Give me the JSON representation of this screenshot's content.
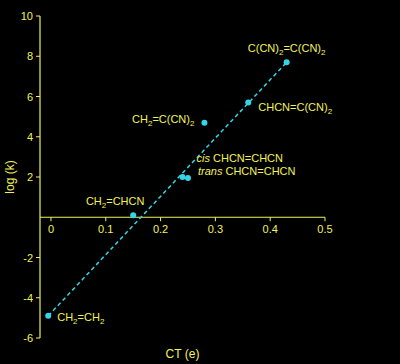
{
  "chart_data": {
    "type": "scatter",
    "x_label": "CT (e)",
    "y_label": "log (k)",
    "xlim": [
      -0.02,
      0.5
    ],
    "ylim": [
      -6,
      10
    ],
    "xticks": [
      0,
      0.1,
      0.2,
      0.3,
      0.4,
      0.5
    ],
    "yticks": [
      -6,
      -4,
      -2,
      2,
      4,
      6,
      8,
      10
    ],
    "series": [
      {
        "type": "scatter",
        "color": "#33d6e6",
        "marker": "circle",
        "x": [
          -0.005,
          0.15,
          0.24,
          0.25,
          0.28,
          0.36,
          0.43
        ],
        "values": [
          -4.9,
          0.1,
          2.0,
          1.95,
          4.7,
          5.7,
          7.7
        ],
        "labels": [
          "CH2=CH2",
          "CH2=CHCN",
          "cis CHCN=CHCN",
          "trans CHCN=CHCN",
          "CH2=C(CN)2",
          "CHCN=C(CN)2",
          "C(CN)2=C(CN)2"
        ]
      },
      {
        "type": "line",
        "color": "#33d6e6",
        "line_style": "dashed",
        "x": [
          -0.005,
          0.43
        ],
        "values": [
          -4.9,
          7.7
        ]
      }
    ]
  }
}
